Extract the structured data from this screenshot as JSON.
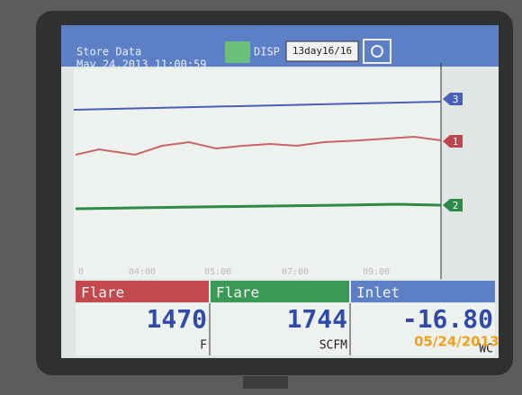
{
  "header": {
    "title": "Store Data",
    "datetime": "May 24,2013 11:00:59",
    "disp": "DISP",
    "range": "13day16/16"
  },
  "trend": {
    "time_labels": [
      "0",
      "04:00",
      "05:00",
      "07:00",
      "09:00"
    ],
    "markers": [
      "3",
      "1",
      "2"
    ]
  },
  "channels": [
    {
      "name": "Flare",
      "value": "1470",
      "unit": "F"
    },
    {
      "name": "Flare",
      "value": "1744",
      "unit": "SCFM"
    },
    {
      "name": "Inlet",
      "value": "-16.80",
      "unit": "WC"
    }
  ],
  "photo_stamp": "05/24/2013"
}
